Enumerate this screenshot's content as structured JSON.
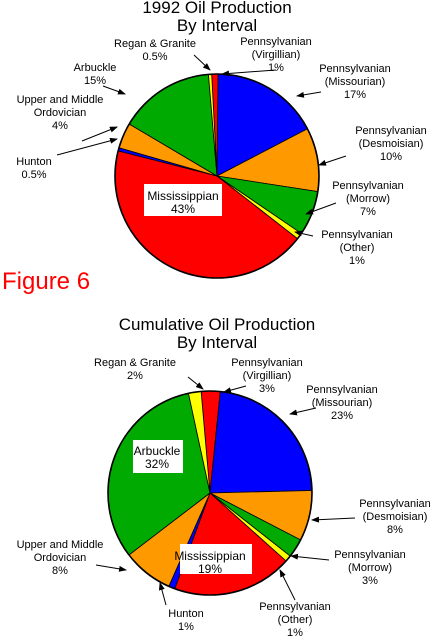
{
  "figure_label": "Figure 6",
  "chart_data": [
    {
      "type": "pie",
      "title": "1992 Oil Production",
      "subtitle": "By Interval",
      "unit": "%",
      "slices": [
        {
          "name": "Pennsylvanian (Virgillian)",
          "lines": [
            "Pennsylvanian",
            "(Virgillian)",
            "1%"
          ],
          "value": 1,
          "color": "#ff0000"
        },
        {
          "name": "Pennsylvanian (Missourian)",
          "lines": [
            "Pennsylvanian",
            "(Missourian)",
            "17%"
          ],
          "value": 17,
          "color": "#0000ff"
        },
        {
          "name": "Pennsylvanian (Desmoisian)",
          "lines": [
            "Pennsylvanian",
            "(Desmoisian)",
            "10%"
          ],
          "value": 10,
          "color": "#ff9900"
        },
        {
          "name": "Pennsylvanian (Morrow)",
          "lines": [
            "Pennsylvanian",
            "(Morrow)",
            "7%"
          ],
          "value": 7,
          "color": "#00aa00"
        },
        {
          "name": "Pennsylvanian (Other)",
          "lines": [
            "Pennsylvanian",
            "(Other)",
            "1%"
          ],
          "value": 1,
          "color": "#ffff00"
        },
        {
          "name": "Mississippian",
          "lines": [
            "Mississippian",
            "43%"
          ],
          "value": 43,
          "color": "#ff0000"
        },
        {
          "name": "Hunton",
          "lines": [
            "Hunton",
            "0.5%"
          ],
          "value": 0.5,
          "color": "#0000ff"
        },
        {
          "name": "Upper and Middle Ordovician",
          "lines": [
            "Upper and Middle",
            "Ordovician",
            "4%"
          ],
          "value": 4,
          "color": "#ff9900"
        },
        {
          "name": "Arbuckle",
          "lines": [
            "Arbuckle",
            "15%"
          ],
          "value": 15,
          "color": "#00aa00"
        },
        {
          "name": "Regan & Granite",
          "lines": [
            "Regan & Granite",
            "0.5%"
          ],
          "value": 0.5,
          "color": "#ffff00"
        }
      ]
    },
    {
      "type": "pie",
      "title": "Cumulative Oil Production",
      "subtitle": "By Interval",
      "unit": "%",
      "slices": [
        {
          "name": "Pennsylvanian (Virgillian)",
          "lines": [
            "Pennsylvanian",
            "(Virgillian)",
            "3%"
          ],
          "value": 3,
          "color": "#ff0000"
        },
        {
          "name": "Pennsylvanian (Missourian)",
          "lines": [
            "Pennsylvanian",
            "(Missourian)",
            "23%"
          ],
          "value": 23,
          "color": "#0000ff"
        },
        {
          "name": "Pennsylvanian (Desmoisian)",
          "lines": [
            "Pennsylvanian",
            "(Desmoisian)",
            "8%"
          ],
          "value": 8,
          "color": "#ff9900"
        },
        {
          "name": "Pennsylvanian (Morrow)",
          "lines": [
            "Pennsylvanian",
            "(Morrow)",
            "3%"
          ],
          "value": 3,
          "color": "#00aa00"
        },
        {
          "name": "Pennsylvanian (Other)",
          "lines": [
            "Pennsylvanian",
            "(Other)",
            "1%"
          ],
          "value": 1,
          "color": "#ffff00"
        },
        {
          "name": "Mississippian",
          "lines": [
            "Mississippian",
            "19%"
          ],
          "value": 19,
          "color": "#ff0000"
        },
        {
          "name": "Hunton",
          "lines": [
            "Hunton",
            "1%"
          ],
          "value": 1,
          "color": "#0000ff"
        },
        {
          "name": "Upper and Middle Ordovician",
          "lines": [
            "Upper and Middle",
            "Ordovician",
            "8%"
          ],
          "value": 8,
          "color": "#ff9900"
        },
        {
          "name": "Arbuckle",
          "lines": [
            "Arbuckle",
            "32%"
          ],
          "value": 32,
          "color": "#00aa00"
        },
        {
          "name": "Regan & Granite",
          "lines": [
            "Regan & Granite",
            "2%"
          ],
          "value": 2,
          "color": "#ffff00"
        }
      ]
    }
  ]
}
